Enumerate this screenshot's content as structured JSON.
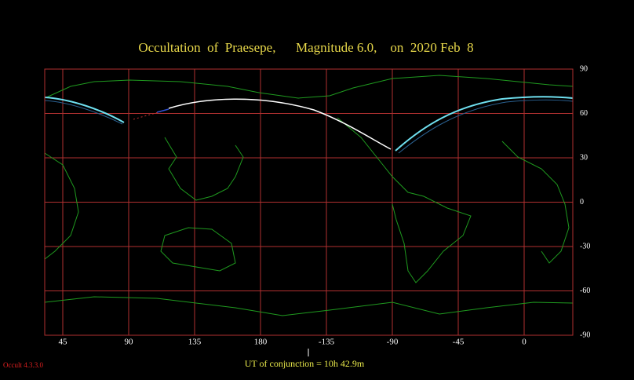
{
  "title": "Occultation  of  Praesepe,      Magnitude 6.0,    on  2020 Feb  8",
  "map": {
    "lon_ticks": [
      45,
      90,
      135,
      180,
      -135,
      -90,
      -45,
      0
    ],
    "lat_ticks": [
      90,
      60,
      30,
      0,
      -30,
      -60,
      -90
    ]
  },
  "footer": "UT of conjunction = 10h 42.9m",
  "version": "Occult 4.3.3.0"
}
